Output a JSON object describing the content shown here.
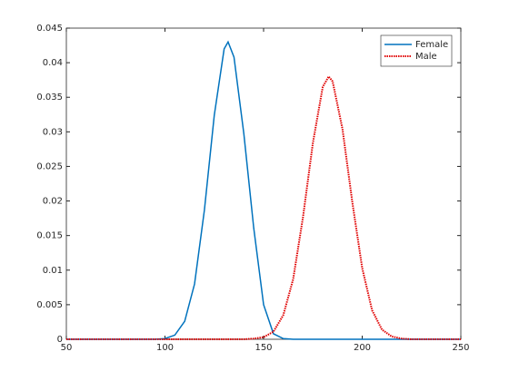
{
  "chart_data": {
    "type": "line",
    "series": [
      {
        "name": "Female",
        "color": "#0072bd",
        "dash": "solid",
        "x": [
          50,
          95,
          100,
          105,
          110,
          115,
          120,
          125,
          130,
          132,
          135,
          140,
          145,
          150,
          155,
          160,
          165,
          250
        ],
        "values": [
          0,
          0,
          0.0001,
          0.0006,
          0.0026,
          0.008,
          0.0187,
          0.0324,
          0.042,
          0.043,
          0.0408,
          0.0297,
          0.0161,
          0.005,
          0.0008,
          0.0001,
          0,
          0
        ]
      },
      {
        "name": "Male",
        "color": "#e00000",
        "dash": "dotted",
        "x": [
          50,
          140,
          145,
          150,
          155,
          160,
          165,
          170,
          175,
          180,
          183,
          185,
          190,
          195,
          200,
          205,
          210,
          215,
          220,
          225,
          250
        ],
        "values": [
          0,
          0,
          0.0001,
          0.0003,
          0.0011,
          0.0035,
          0.0087,
          0.0177,
          0.0284,
          0.0365,
          0.038,
          0.0373,
          0.0304,
          0.0198,
          0.0103,
          0.0042,
          0.0014,
          0.0004,
          0.0001,
          0,
          0
        ]
      }
    ],
    "xlim": [
      50,
      250
    ],
    "xticks": [
      50,
      100,
      150,
      200,
      250
    ],
    "ylim": [
      0,
      0.045
    ],
    "yticks": [
      0,
      0.005,
      0.01,
      0.015,
      0.02,
      0.025,
      0.03,
      0.035,
      0.04,
      0.045
    ],
    "legend": "top-right"
  }
}
